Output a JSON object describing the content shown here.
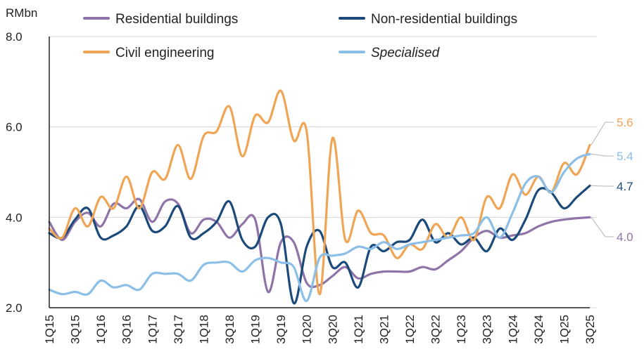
{
  "chart_data": {
    "type": "line",
    "ylabel": "RMbn",
    "ylim": [
      2.0,
      8.0
    ],
    "yticks": [
      "2.0",
      "4.0",
      "6.0",
      "8.0"
    ],
    "categories": [
      "1Q15",
      "2Q15",
      "3Q15",
      "4Q15",
      "1Q16",
      "2Q16",
      "3Q16",
      "4Q16",
      "1Q17",
      "2Q17",
      "3Q17",
      "4Q17",
      "1Q18",
      "2Q18",
      "3Q18",
      "4Q18",
      "1Q19",
      "2Q19",
      "3Q19",
      "4Q19",
      "1Q20",
      "2Q20",
      "3Q20",
      "4Q20",
      "1Q21",
      "2Q21",
      "3Q21",
      "4Q21",
      "1Q22",
      "2Q22",
      "3Q22",
      "4Q22",
      "1Q23",
      "2Q23",
      "3Q23",
      "4Q23",
      "1Q24",
      "2Q24",
      "3Q24",
      "4Q24",
      "1Q25",
      "2Q25",
      "3Q25"
    ],
    "xtick_labels": [
      "1Q15",
      "3Q15",
      "1Q16",
      "3Q16",
      "1Q17",
      "3Q17",
      "1Q18",
      "3Q18",
      "1Q19",
      "3Q19",
      "1Q20",
      "3Q20",
      "1Q21",
      "3Q21",
      "1Q22",
      "3Q22",
      "1Q23",
      "3Q23",
      "1Q24",
      "3Q24",
      "1Q25",
      "3Q25"
    ],
    "series": [
      {
        "name": "Residential buildings",
        "color": "#8e74a8",
        "style": "normal",
        "end_label": "4.0",
        "values": [
          3.9,
          3.5,
          3.9,
          4.1,
          3.8,
          4.3,
          4.2,
          4.4,
          3.9,
          4.35,
          4.3,
          3.65,
          3.95,
          3.9,
          3.55,
          3.85,
          3.95,
          2.35,
          3.45,
          3.45,
          2.55,
          2.5,
          2.7,
          2.9,
          2.65,
          2.75,
          2.8,
          2.8,
          2.8,
          2.9,
          2.85,
          3.05,
          3.25,
          3.55,
          3.7,
          3.55,
          3.6,
          3.65,
          3.8,
          3.9,
          3.95,
          3.98,
          4.0
        ]
      },
      {
        "name": "Non-residential buildings",
        "color": "#1c4a7a",
        "style": "normal",
        "end_label": "4.7",
        "values": [
          3.65,
          3.55,
          3.95,
          4.2,
          3.55,
          3.6,
          3.8,
          4.25,
          3.7,
          3.8,
          4.25,
          3.55,
          3.65,
          3.9,
          4.35,
          3.5,
          3.35,
          4.0,
          3.85,
          2.1,
          3.35,
          3.7,
          2.9,
          3.0,
          2.45,
          3.35,
          3.25,
          3.45,
          3.5,
          3.95,
          3.45,
          3.65,
          3.4,
          3.55,
          3.25,
          3.75,
          3.5,
          3.95,
          4.6,
          4.55,
          4.2,
          4.45,
          4.7
        ]
      },
      {
        "name": "Civil engineering",
        "color": "#f0a555",
        "style": "normal",
        "end_label": "5.6",
        "values": [
          3.75,
          3.55,
          4.2,
          3.8,
          4.45,
          4.2,
          4.9,
          4.2,
          5.0,
          4.85,
          5.6,
          4.85,
          5.8,
          5.9,
          6.45,
          5.35,
          6.25,
          6.1,
          6.8,
          5.7,
          5.9,
          2.3,
          5.75,
          3.5,
          4.15,
          3.65,
          3.6,
          3.1,
          3.4,
          3.3,
          3.85,
          3.55,
          4.0,
          3.5,
          4.45,
          4.2,
          4.95,
          4.5,
          4.9,
          4.55,
          5.2,
          4.95,
          5.6
        ]
      },
      {
        "name": "Specialised",
        "color": "#8bbfe8",
        "style": "italic",
        "end_label": "5.4",
        "values": [
          2.4,
          2.3,
          2.35,
          2.3,
          2.6,
          2.45,
          2.5,
          2.4,
          2.75,
          2.75,
          2.75,
          2.6,
          2.95,
          3.0,
          3.0,
          2.8,
          3.05,
          3.1,
          3.0,
          2.9,
          2.15,
          3.1,
          3.15,
          3.2,
          3.35,
          3.3,
          3.45,
          3.3,
          3.4,
          3.45,
          3.5,
          3.55,
          3.6,
          3.65,
          4.0,
          3.55,
          4.1,
          4.75,
          4.9,
          4.55,
          5.0,
          5.3,
          5.4
        ]
      }
    ]
  }
}
